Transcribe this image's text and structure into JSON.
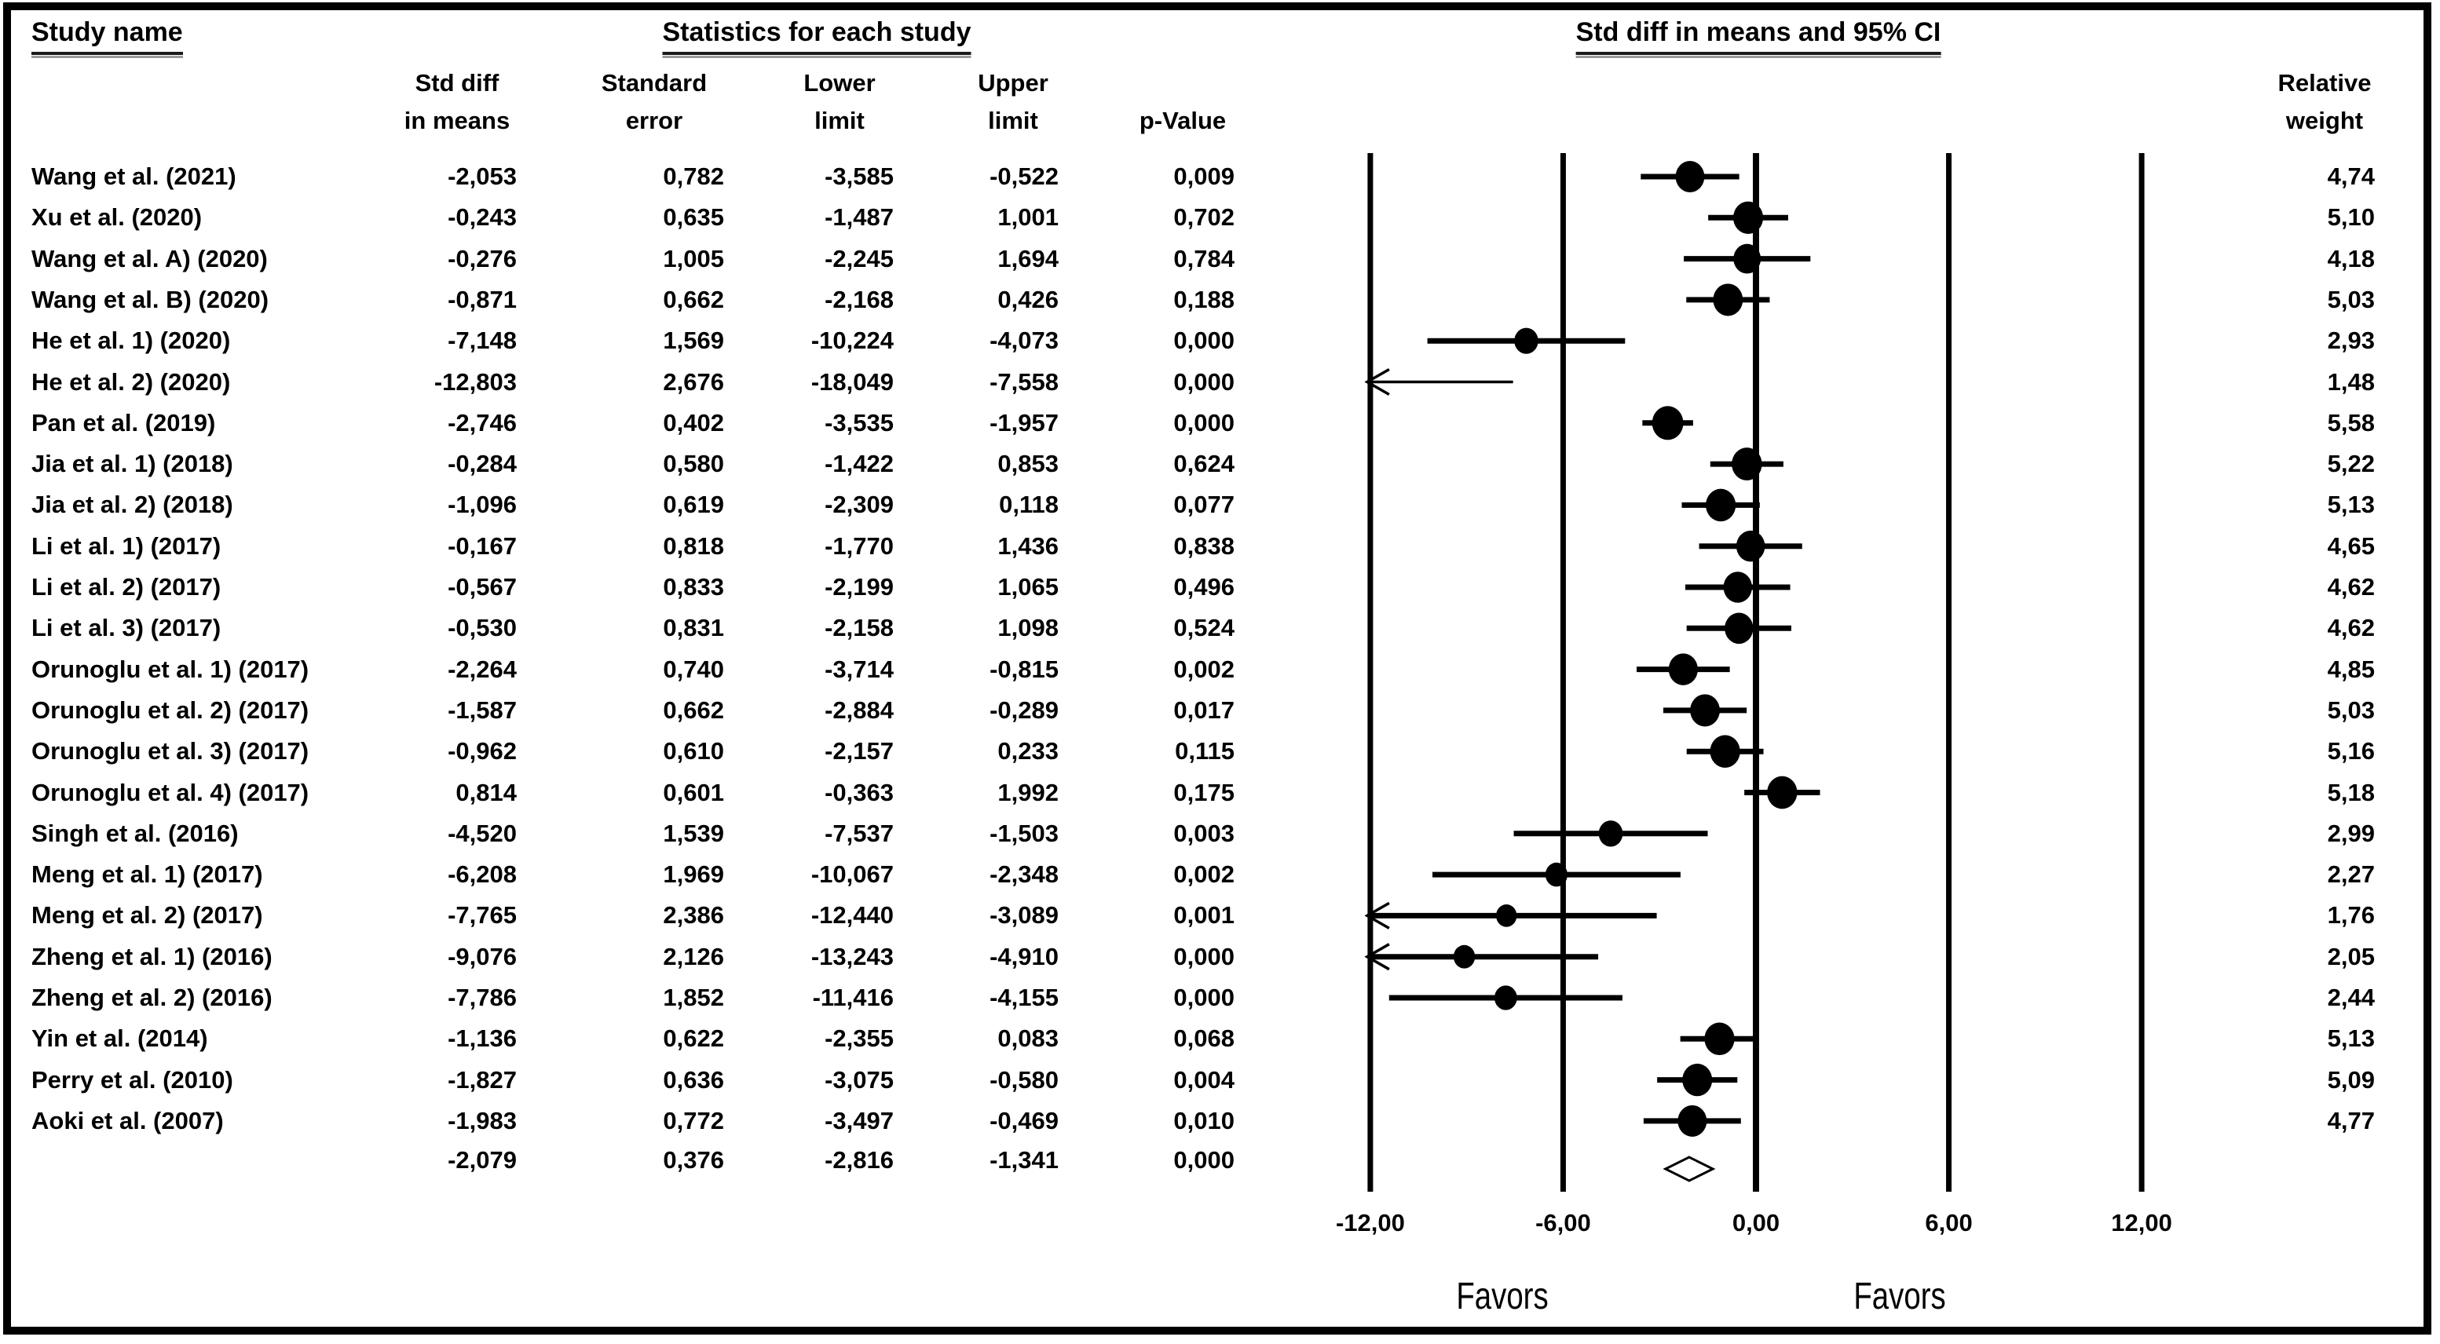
{
  "headers": {
    "study_name": "Study name",
    "statistics": "Statistics for each study",
    "plot_title": "Std diff in means and 95% CI"
  },
  "table": {
    "col_headers": {
      "std_diff": {
        "l1": "Std diff",
        "l2": "in means"
      },
      "std_error": {
        "l1": "Standard",
        "l2": "error"
      },
      "lower": {
        "l1": "Lower",
        "l2": "limit"
      },
      "upper": {
        "l1": "Upper",
        "l2": "limit"
      },
      "p_value": {
        "l1": "p-Value"
      },
      "weight": {
        "l1": "Relative",
        "l2": "weight"
      }
    },
    "decimal_separator": ","
  },
  "favors": {
    "left": "Favors",
    "right": "Favors"
  },
  "chart_data": {
    "type": "forest",
    "title": "Std diff in means and 95% CI",
    "xlabel": "",
    "x_ticks": [
      -12,
      -6,
      0,
      6,
      12
    ],
    "x_tick_labels": [
      "-12,00",
      "-6,00",
      "0,00",
      "6,00",
      "12,00"
    ],
    "x_clip": [
      -12,
      12
    ],
    "grid": "vertical-lines",
    "marker": "filled-circle-sized-by-weight",
    "studies": [
      {
        "name": "Wang et al. (2021)",
        "mean": -2.053,
        "se": 0.782,
        "lower": -3.585,
        "upper": -0.522,
        "p": 0.009,
        "weight": 4.74
      },
      {
        "name": "Xu et al. (2020)",
        "mean": -0.243,
        "se": 0.635,
        "lower": -1.487,
        "upper": 1.001,
        "p": 0.702,
        "weight": 5.1
      },
      {
        "name": "Wang et al. A) (2020)",
        "mean": -0.276,
        "se": 1.005,
        "lower": -2.245,
        "upper": 1.694,
        "p": 0.784,
        "weight": 4.18
      },
      {
        "name": "Wang et al. B) (2020)",
        "mean": -0.871,
        "se": 0.662,
        "lower": -2.168,
        "upper": 0.426,
        "p": 0.188,
        "weight": 5.03
      },
      {
        "name": "He et al. 1) (2020)",
        "mean": -7.148,
        "se": 1.569,
        "lower": -10.224,
        "upper": -4.073,
        "p": 0.0,
        "weight": 2.93
      },
      {
        "name": "He et al. 2) (2020)",
        "mean": -12.803,
        "se": 2.676,
        "lower": -18.049,
        "upper": -7.558,
        "p": 0.0,
        "weight": 1.48
      },
      {
        "name": "Pan et al. (2019)",
        "mean": -2.746,
        "se": 0.402,
        "lower": -3.535,
        "upper": -1.957,
        "p": 0.0,
        "weight": 5.58
      },
      {
        "name": "Jia et al. 1) (2018)",
        "mean": -0.284,
        "se": 0.58,
        "lower": -1.422,
        "upper": 0.853,
        "p": 0.624,
        "weight": 5.22
      },
      {
        "name": "Jia et al. 2) (2018)",
        "mean": -1.096,
        "se": 0.619,
        "lower": -2.309,
        "upper": 0.118,
        "p": 0.077,
        "weight": 5.13
      },
      {
        "name": "Li et al. 1) (2017)",
        "mean": -0.167,
        "se": 0.818,
        "lower": -1.77,
        "upper": 1.436,
        "p": 0.838,
        "weight": 4.65
      },
      {
        "name": "Li et al. 2) (2017)",
        "mean": -0.567,
        "se": 0.833,
        "lower": -2.199,
        "upper": 1.065,
        "p": 0.496,
        "weight": 4.62
      },
      {
        "name": "Li et al. 3) (2017)",
        "mean": -0.53,
        "se": 0.831,
        "lower": -2.158,
        "upper": 1.098,
        "p": 0.524,
        "weight": 4.62
      },
      {
        "name": "Orunoglu et al. 1) (2017)",
        "mean": -2.264,
        "se": 0.74,
        "lower": -3.714,
        "upper": -0.815,
        "p": 0.002,
        "weight": 4.85
      },
      {
        "name": "Orunoglu et al. 2) (2017)",
        "mean": -1.587,
        "se": 0.662,
        "lower": -2.884,
        "upper": -0.289,
        "p": 0.017,
        "weight": 5.03
      },
      {
        "name": "Orunoglu et al. 3) (2017)",
        "mean": -0.962,
        "se": 0.61,
        "lower": -2.157,
        "upper": 0.233,
        "p": 0.115,
        "weight": 5.16
      },
      {
        "name": "Orunoglu et al. 4) (2017)",
        "mean": 0.814,
        "se": 0.601,
        "lower": -0.363,
        "upper": 1.992,
        "p": 0.175,
        "weight": 5.18
      },
      {
        "name": "Singh et al. (2016)",
        "mean": -4.52,
        "se": 1.539,
        "lower": -7.537,
        "upper": -1.503,
        "p": 0.003,
        "weight": 2.99
      },
      {
        "name": "Meng et al. 1) (2017)",
        "mean": -6.208,
        "se": 1.969,
        "lower": -10.067,
        "upper": -2.348,
        "p": 0.002,
        "weight": 2.27
      },
      {
        "name": "Meng et al. 2) (2017)",
        "mean": -7.765,
        "se": 2.386,
        "lower": -12.44,
        "upper": -3.089,
        "p": 0.001,
        "weight": 1.76
      },
      {
        "name": "Zheng et al. 1) (2016)",
        "mean": -9.076,
        "se": 2.126,
        "lower": -13.243,
        "upper": -4.91,
        "p": 0.0,
        "weight": 2.05
      },
      {
        "name": "Zheng et al. 2) (2016)",
        "mean": -7.786,
        "se": 1.852,
        "lower": -11.416,
        "upper": -4.155,
        "p": 0.0,
        "weight": 2.44
      },
      {
        "name": "Yin et al. (2014)",
        "mean": -1.136,
        "se": 0.622,
        "lower": -2.355,
        "upper": 0.083,
        "p": 0.068,
        "weight": 5.13
      },
      {
        "name": "Perry et al. (2010)",
        "mean": -1.827,
        "se": 0.636,
        "lower": -3.075,
        "upper": -0.58,
        "p": 0.004,
        "weight": 5.09
      },
      {
        "name": "Aoki et al. (2007)",
        "mean": -1.983,
        "se": 0.772,
        "lower": -3.497,
        "upper": -0.469,
        "p": 0.01,
        "weight": 4.77
      }
    ],
    "overall": {
      "mean": -2.079,
      "se": 0.376,
      "lower": -2.816,
      "upper": -1.341,
      "p": 0.0,
      "weight": null
    }
  }
}
